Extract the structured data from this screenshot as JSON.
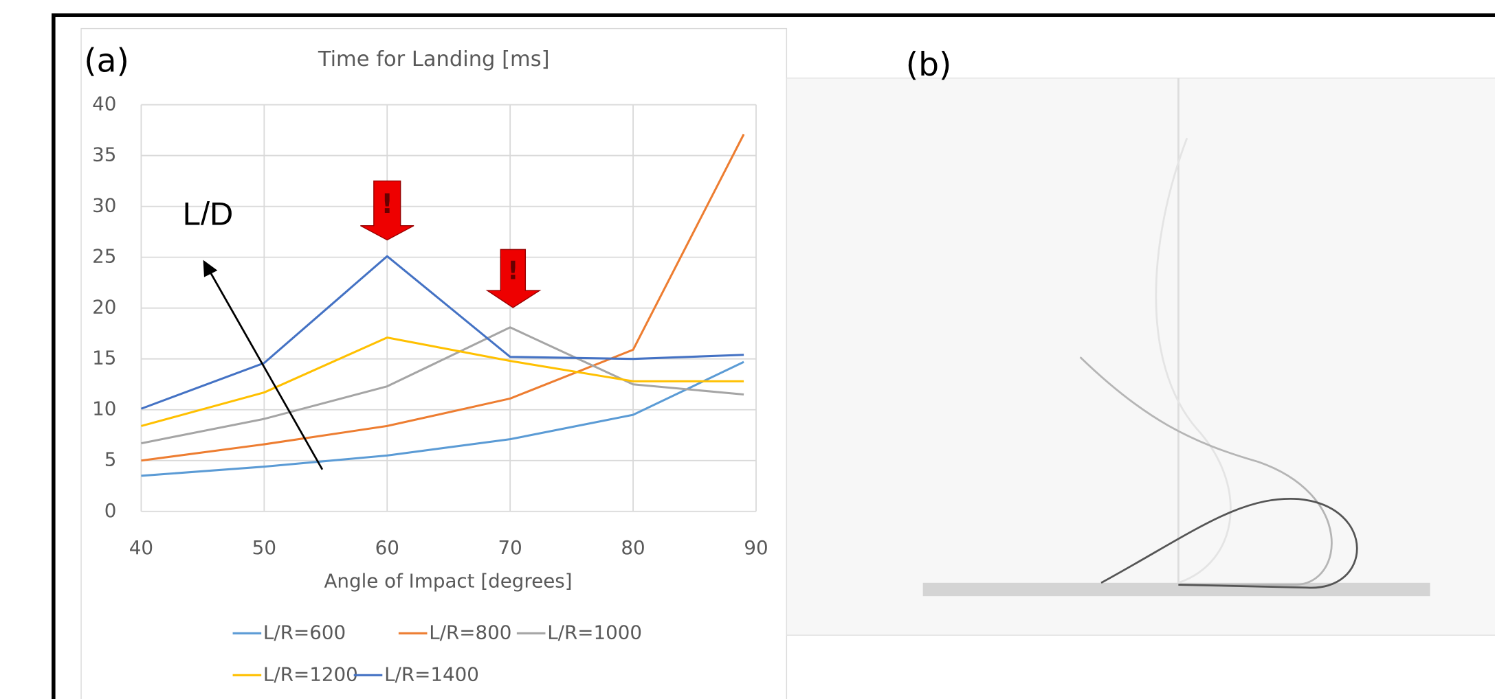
{
  "panel_labels": [
    "(a)",
    "(b)"
  ],
  "chart_data": {
    "type": "line",
    "title": "Time for Landing [ms]",
    "x_label": "Angle of Impact [degrees]",
    "xlim": [
      40,
      90
    ],
    "xticks": [
      40,
      50,
      60,
      70,
      80,
      90
    ],
    "ylim": [
      0,
      40
    ],
    "yticks": [
      0,
      5,
      10,
      15,
      20,
      25,
      30,
      35,
      40
    ],
    "grid": true,
    "x": [
      40,
      50,
      60,
      70,
      80,
      89
    ],
    "series": [
      {
        "name": "L/R=600",
        "color": "#5b9bd5",
        "values": [
          3.5,
          4.4,
          5.5,
          7.1,
          9.5,
          14.7
        ]
      },
      {
        "name": "L/R=800",
        "color": "#ed7d31",
        "values": [
          5.0,
          6.6,
          8.4,
          11.1,
          15.9,
          37.1
        ]
      },
      {
        "name": "L/R=1000",
        "color": "#a5a5a5",
        "values": [
          6.7,
          9.1,
          12.3,
          18.1,
          12.5,
          11.5
        ]
      },
      {
        "name": "L/R=1200",
        "color": "#ffc000",
        "values": [
          8.4,
          11.7,
          17.1,
          14.8,
          12.8,
          12.8
        ]
      },
      {
        "name": "L/R=1400",
        "color": "#4472c4",
        "values": [
          10.1,
          14.6,
          25.1,
          15.2,
          15.0,
          15.4
        ]
      }
    ],
    "annotations": [
      "L/D",
      "!",
      "!"
    ]
  }
}
